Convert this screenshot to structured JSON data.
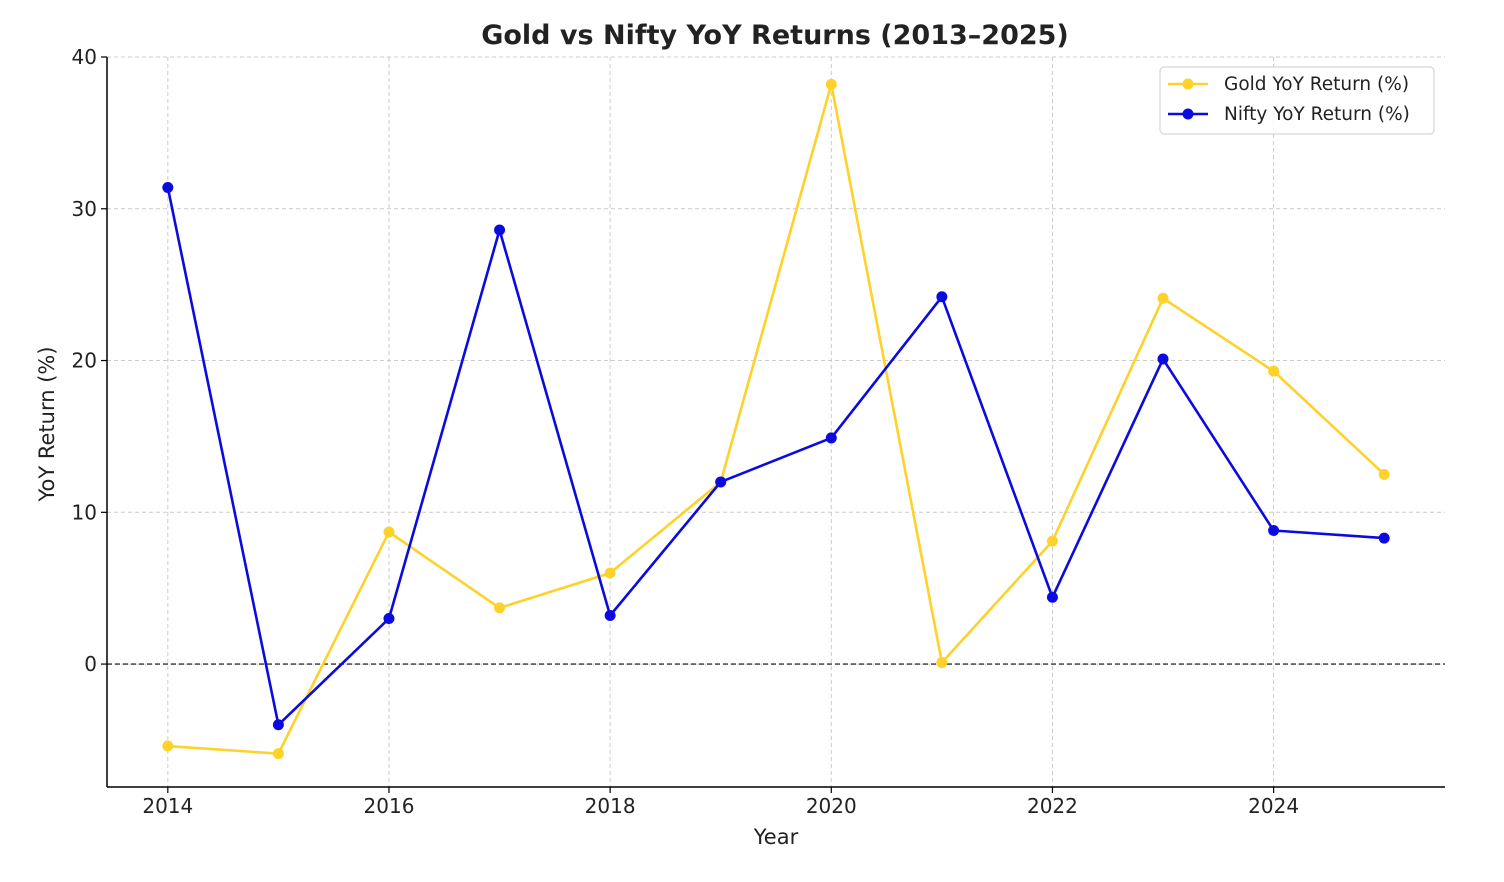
{
  "chart_data": {
    "type": "line",
    "title": "Gold vs Nifty YoY Returns (2013–2025)",
    "xlabel": "Year",
    "ylabel": "YoY Return (%)",
    "x": [
      2014,
      2015,
      2016,
      2017,
      2018,
      2019,
      2020,
      2021,
      2022,
      2023,
      2024,
      2025
    ],
    "xlim": [
      2013.45,
      2025.55
    ],
    "ylim": [
      -8.1,
      40
    ],
    "x_ticks": [
      2014,
      2016,
      2018,
      2020,
      2022,
      2024
    ],
    "x_tick_labels": [
      "2014",
      "2016",
      "2018",
      "2020",
      "2022",
      "2024"
    ],
    "y_ticks": [
      0,
      10,
      20,
      30,
      40
    ],
    "y_tick_labels": [
      "0",
      "10",
      "20",
      "30",
      "40"
    ],
    "grid": true,
    "reference_line": {
      "y": 0,
      "style": "dashed",
      "color": "#333333"
    },
    "legend_position": "top-right",
    "series": [
      {
        "name": "Gold YoY Return (%)",
        "color": "#FFD12B",
        "values": [
          -5.4,
          -5.9,
          8.7,
          3.7,
          6.0,
          12.0,
          38.2,
          0.1,
          8.1,
          24.1,
          19.3,
          12.5
        ]
      },
      {
        "name": "Nifty YoY Return (%)",
        "color": "#0B0BE0",
        "values": [
          31.4,
          -4.0,
          3.0,
          28.6,
          3.2,
          12.0,
          14.9,
          24.2,
          4.4,
          20.1,
          8.8,
          8.3
        ]
      }
    ]
  }
}
